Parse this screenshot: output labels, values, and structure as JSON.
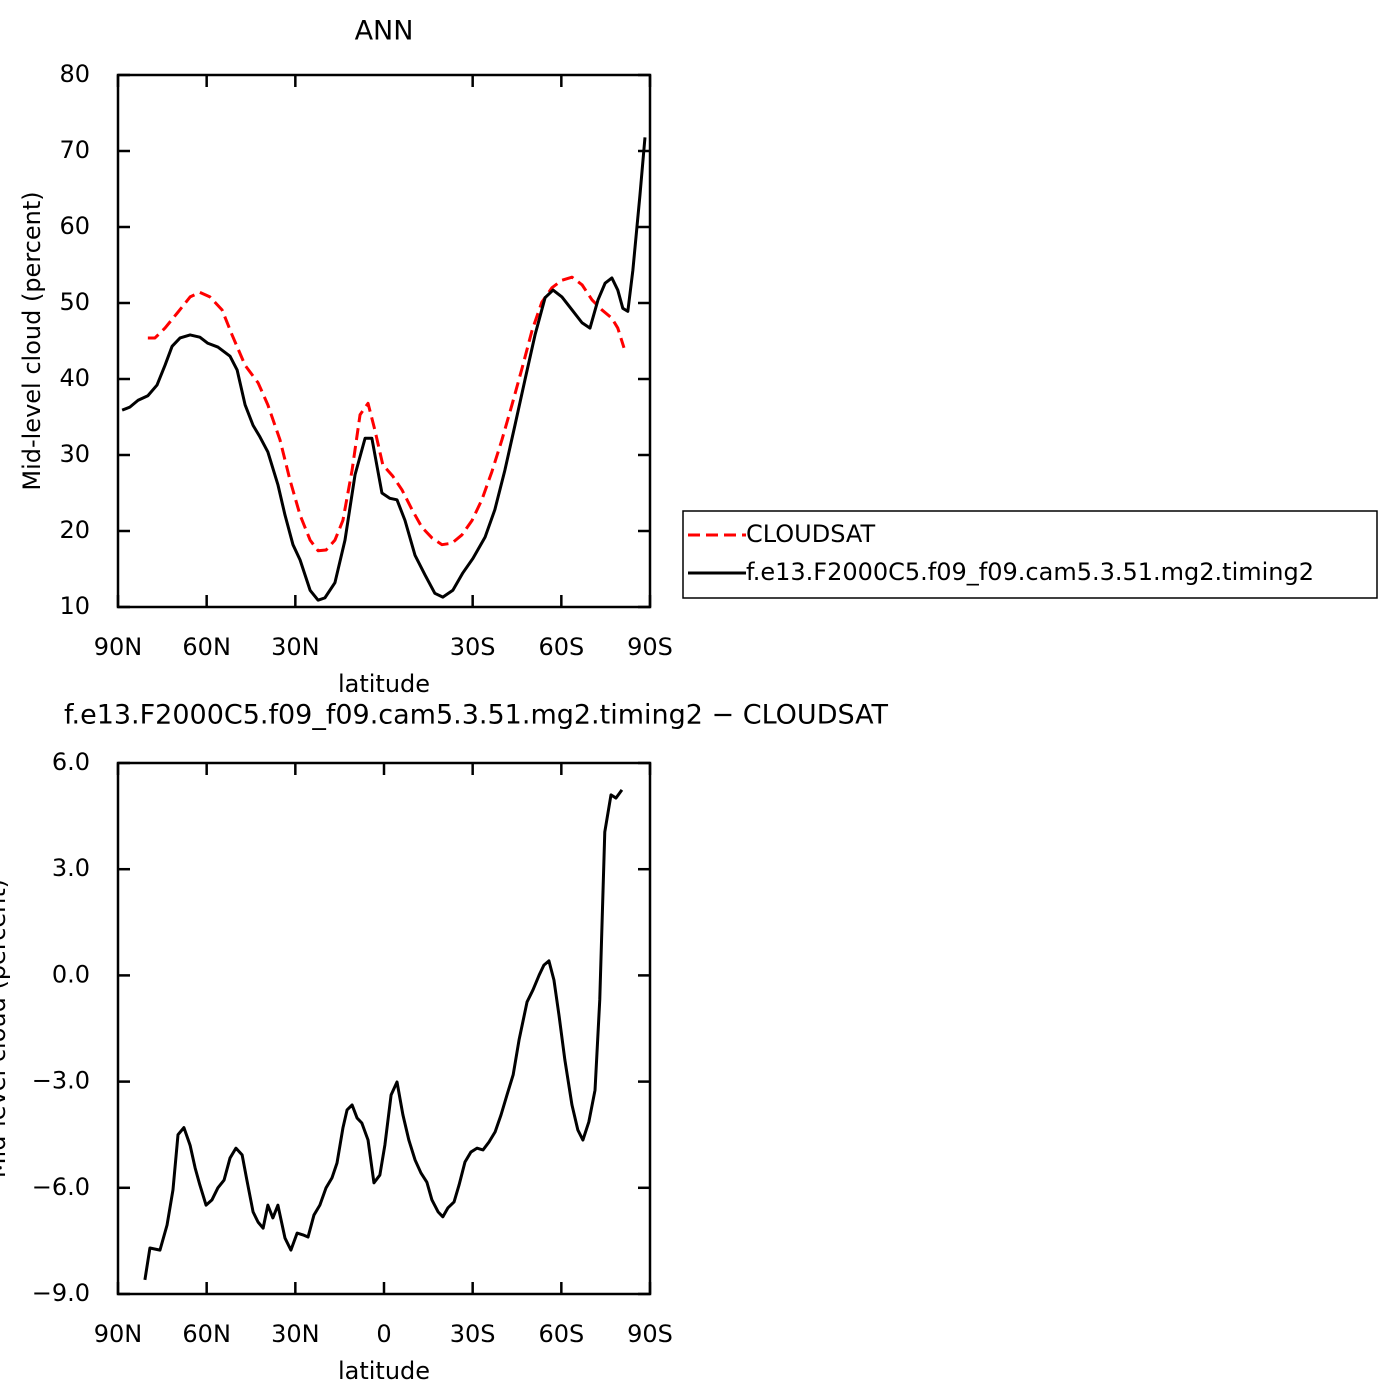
{
  "chart_data": [
    {
      "type": "line",
      "title": "ANN",
      "x_label": "latitude",
      "y_label": "Mid-level cloud (percent)",
      "xlim": [
        90,
        -90
      ],
      "xticks": [
        {
          "value": 90,
          "label": "90N"
        },
        {
          "value": 60,
          "label": "60N"
        },
        {
          "value": 30,
          "label": "30N"
        },
        {
          "value": -30,
          "label": "30S"
        },
        {
          "value": -60,
          "label": "60S"
        },
        {
          "value": -90,
          "label": "90S"
        }
      ],
      "ylim": [
        10,
        80
      ],
      "yticks": [
        10,
        20,
        30,
        40,
        50,
        60,
        70,
        80
      ],
      "legend": "right",
      "series": [
        {
          "name": "CLOUDSAT",
          "color": "#ff0000",
          "dashed": true,
          "x": [
            79.9,
            77.5,
            74.1,
            69.7,
            65.6,
            62.3,
            58.9,
            54.8,
            51.4,
            47,
            42.6,
            39.3,
            35.2,
            31.8,
            28.4,
            25,
            22.3,
            19.6,
            16.6,
            13.9,
            10.8,
            8.1,
            5.4,
            3.1,
            0.4,
            -3,
            -6.1,
            -9.5,
            -12.8,
            -16.2,
            -19.6,
            -23,
            -26.4,
            -29.8,
            -33.1,
            -36.5,
            -39.9,
            -43.3,
            -46.7,
            -50.1,
            -53.4,
            -56.8,
            -60.2,
            -63.6,
            -67,
            -70.4,
            -73.7,
            -77.1,
            -79.1,
            -81.2
          ],
          "values": [
            45.4,
            45.4,
            46.7,
            48.8,
            50.8,
            51.4,
            50.8,
            49.1,
            45.8,
            41.8,
            39.5,
            36.6,
            32,
            26.7,
            22.1,
            18.8,
            17.4,
            17.5,
            18.8,
            21.4,
            28,
            35.3,
            36.8,
            33.3,
            28.7,
            27.2,
            25.4,
            22.8,
            20.5,
            19.1,
            18.2,
            18.4,
            19.5,
            21.4,
            24.1,
            27.8,
            32,
            36.6,
            41.4,
            46.4,
            50.1,
            52,
            53,
            53.4,
            52.4,
            50.4,
            49.1,
            48,
            46.7,
            44.1
          ]
        },
        {
          "name": "f.e13.F2000C5.f09_f09.cam5.3.51.mg2.timing2",
          "color": "#000000",
          "dashed": false,
          "x": [
            88.6,
            86,
            83.2,
            79.9,
            76.8,
            74.1,
            71.7,
            69,
            65.6,
            62.3,
            59.6,
            56.2,
            52.1,
            49.7,
            47,
            44.3,
            42,
            39.3,
            35.9,
            33.5,
            30.8,
            28.4,
            25,
            22.3,
            20,
            16.6,
            13.2,
            9.8,
            6.4,
            4.1,
            0.7,
            -2,
            -4.4,
            -7.1,
            -10.5,
            -13.9,
            -17.2,
            -19.9,
            -23.3,
            -26.7,
            -30.1,
            -34.2,
            -37.5,
            -40.9,
            -44.3,
            -47.7,
            -51.1,
            -54.5,
            -57.2,
            -60.2,
            -63.6,
            -67,
            -69.7,
            -72.4,
            -74.8,
            -77.1,
            -79.1,
            -80.8,
            -82.5,
            -84.2,
            -86.6,
            -88.3
          ],
          "values": [
            35.9,
            36.3,
            37.2,
            37.8,
            39.2,
            41.8,
            44.3,
            45.4,
            45.8,
            45.5,
            44.7,
            44.2,
            43,
            41.2,
            36.6,
            33.9,
            32.4,
            30.4,
            26.1,
            22.1,
            18.2,
            16.2,
            12.2,
            10.9,
            11.2,
            13.2,
            18.8,
            27.4,
            32.2,
            32.2,
            25,
            24.3,
            24.1,
            21.4,
            16.8,
            14.2,
            11.8,
            11.3,
            12.2,
            14.5,
            16.4,
            19.2,
            22.8,
            28,
            33.9,
            39.9,
            45.8,
            50.7,
            51.7,
            50.8,
            49.1,
            47.4,
            46.7,
            50.4,
            52.6,
            53.3,
            51.7,
            49.3,
            48.9,
            54.3,
            64.2,
            71.8
          ]
        }
      ]
    },
    {
      "type": "line",
      "title": "f.e13.F2000C5.f09_f09.cam5.3.51.mg2.timing2 − CLOUDSAT",
      "x_label": "latitude",
      "y_label": "Mid-level cloud (percent)",
      "xlim": [
        90,
        -90
      ],
      "xticks": [
        {
          "value": 90,
          "label": "90N"
        },
        {
          "value": 60,
          "label": "60N"
        },
        {
          "value": 30,
          "label": "30N"
        },
        0,
        {
          "value": -30,
          "label": "30S"
        },
        {
          "value": -60,
          "label": "60S"
        },
        {
          "value": -90,
          "label": "90S"
        }
      ],
      "ylim": [
        -9,
        6
      ],
      "yticks": [
        {
          "value": -9,
          "label": "−9.0"
        },
        {
          "value": -6,
          "label": "−6.0"
        },
        {
          "value": -3,
          "label": "−3.0"
        },
        {
          "value": 0,
          "label": "0.0"
        },
        {
          "value": 3,
          "label": "3.0"
        },
        {
          "value": 6,
          "label": "6.0"
        }
      ],
      "series": [
        {
          "color": "#000000",
          "dashed": false,
          "x": [
            80.9,
            79.2,
            75.8,
            73.4,
            71.4,
            69.7,
            67.7,
            65.6,
            63.9,
            62.3,
            60.2,
            58.2,
            56.2,
            54.1,
            52.1,
            50.1,
            48,
            46.4,
            44.3,
            42.6,
            40.9,
            39.3,
            37.6,
            35.9,
            33.5,
            31.5,
            29.4,
            27.4,
            25.7,
            23.7,
            21.7,
            19.6,
            17.6,
            15.9,
            13.9,
            12.5,
            10.8,
            9.1,
            7.5,
            5.4,
            3.4,
            1.4,
            -0.3,
            -2.4,
            -4.4,
            -6.4,
            -8.4,
            -10.5,
            -12.5,
            -14.5,
            -16.2,
            -18.3,
            -19.9,
            -21.6,
            -23.7,
            -25.4,
            -27.4,
            -29.4,
            -31.5,
            -33.5,
            -35.5,
            -37.6,
            -39.6,
            -41.6,
            -43.7,
            -45.7,
            -48.4,
            -50.4,
            -52.5,
            -54.1,
            -55.8,
            -57.5,
            -59.2,
            -61.2,
            -63.6,
            -65.6,
            -67.3,
            -69.3,
            -71.4,
            -73,
            -74.7,
            -76.8,
            -78.5,
            -80.5
          ],
          "values": [
            -8.6,
            -7.7,
            -7.76,
            -7.05,
            -6.06,
            -4.5,
            -4.3,
            -4.8,
            -5.44,
            -5.92,
            -6.49,
            -6.34,
            -6,
            -5.78,
            -5.16,
            -4.88,
            -5.07,
            -5.78,
            -6.68,
            -6.97,
            -7.14,
            -6.49,
            -6.85,
            -6.49,
            -7.42,
            -7.76,
            -7.28,
            -7.33,
            -7.39,
            -6.77,
            -6.49,
            -6,
            -5.72,
            -5.3,
            -4.31,
            -3.8,
            -3.66,
            -4.03,
            -4.17,
            -4.65,
            -5.86,
            -5.64,
            -4.79,
            -3.38,
            -3.01,
            -3.94,
            -4.65,
            -5.21,
            -5.58,
            -5.84,
            -6.34,
            -6.68,
            -6.82,
            -6.57,
            -6.4,
            -5.92,
            -5.27,
            -4.99,
            -4.88,
            -4.93,
            -4.71,
            -4.42,
            -3.94,
            -3.38,
            -2.81,
            -1.82,
            -0.75,
            -0.41,
            0.01,
            0.29,
            0.41,
            -0.13,
            -1.12,
            -2.39,
            -3.66,
            -4.37,
            -4.65,
            -4.14,
            -3.24,
            -0.69,
            4.05,
            5.1,
            5.01,
            5.24
          ]
        }
      ]
    }
  ]
}
